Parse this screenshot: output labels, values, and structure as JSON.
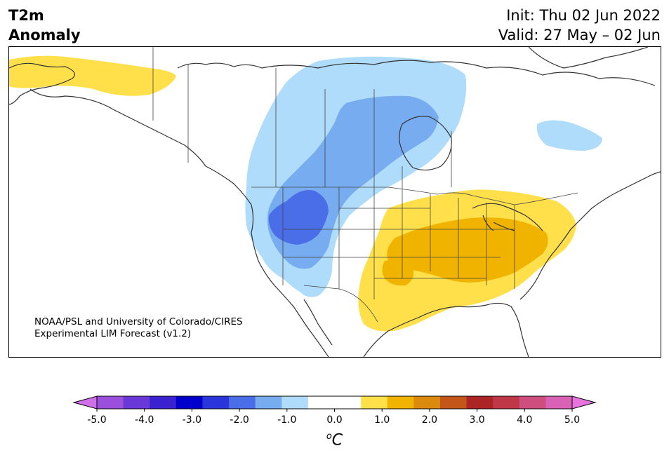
{
  "header": {
    "variable": "T2m",
    "field": "Anomaly",
    "init": "Init: Thu 02 Jun 2022",
    "valid": "Valid: 27 May – 02 Jun"
  },
  "map": {
    "region": "North America",
    "credit_line1": "NOAA/PSL and University of Colorado/CIRES",
    "credit_line2": "Experimental LIM Forecast (v1.2)"
  },
  "colorbar": {
    "colors": [
      "#d070e8",
      "#9a50dc",
      "#6a38d8",
      "#3a22d0",
      "#0000cc",
      "#2a36dc",
      "#4a6ee8",
      "#78acf0",
      "#aedcfa",
      "#ffffff",
      "#ffffff",
      "#ffe04a",
      "#f0b400",
      "#dc8a0e",
      "#c4561a",
      "#ac2424",
      "#c03848",
      "#ce4e7e",
      "#da62b6",
      "#e674de"
    ],
    "tick_labels": [
      "-5.0",
      "-4.0",
      "-3.0",
      "-2.0",
      "-1.0",
      "0.0",
      "1.0",
      "2.0",
      "3.0",
      "4.0",
      "5.0"
    ],
    "unit_main": "C",
    "unit_sup": "o"
  }
}
